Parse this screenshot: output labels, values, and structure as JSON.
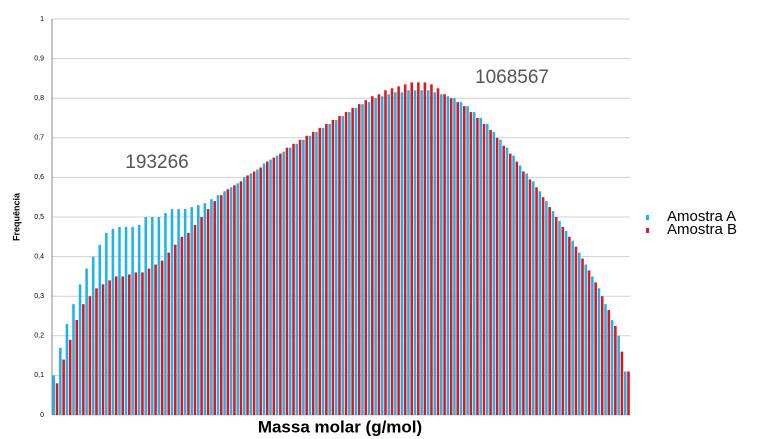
{
  "chart_data": {
    "type": "bar",
    "x_label": "Massa molar (g/mol)",
    "y_label": "Frequência",
    "annotations": [
      "193266",
      "1068567"
    ],
    "categories": [
      null,
      null,
      null,
      null,
      null,
      null,
      null,
      null,
      null,
      null,
      null,
      null,
      null,
      null,
      null,
      null,
      null,
      null,
      null,
      null,
      null,
      null,
      null,
      null,
      null,
      null,
      null,
      null,
      null,
      null,
      null,
      null,
      null,
      null,
      null,
      null,
      null,
      null,
      null,
      null,
      null,
      null,
      null,
      null,
      null,
      null,
      null,
      null,
      null,
      null,
      null,
      null,
      null,
      null,
      null,
      null,
      null,
      null,
      null,
      null,
      null,
      null,
      null,
      null,
      null,
      null,
      null,
      null,
      null,
      null,
      null,
      null,
      null,
      null,
      null,
      null,
      null,
      null,
      null,
      null,
      null,
      null,
      null,
      null,
      null,
      null,
      null,
      null
    ],
    "series": [
      {
        "name": "Amostra A",
        "color": "#1fb4e8",
        "values": [
          0.1,
          0.17,
          0.23,
          0.28,
          0.33,
          0.37,
          0.4,
          0.43,
          0.46,
          0.47,
          0.475,
          0.475,
          0.475,
          0.48,
          0.5,
          0.5,
          0.5,
          0.51,
          0.52,
          0.52,
          0.52,
          0.525,
          0.53,
          0.535,
          0.545,
          0.555,
          0.565,
          0.575,
          0.585,
          0.6,
          0.61,
          0.62,
          0.635,
          0.645,
          0.655,
          0.665,
          0.675,
          0.685,
          0.695,
          0.705,
          0.715,
          0.725,
          0.735,
          0.745,
          0.755,
          0.765,
          0.775,
          0.785,
          0.79,
          0.8,
          0.805,
          0.81,
          0.815,
          0.815,
          0.82,
          0.82,
          0.82,
          0.82,
          0.815,
          0.81,
          0.805,
          0.8,
          0.79,
          0.78,
          0.765,
          0.75,
          0.735,
          0.715,
          0.695,
          0.675,
          0.655,
          0.63,
          0.61,
          0.59,
          0.565,
          0.54,
          0.515,
          0.49,
          0.465,
          0.44,
          0.41,
          0.38,
          0.35,
          0.32,
          0.28,
          0.24,
          0.2,
          0.11
        ]
      },
      {
        "name": "Amostra B",
        "color": "#e3151d",
        "values": [
          0.08,
          0.14,
          0.19,
          0.24,
          0.28,
          0.3,
          0.32,
          0.33,
          0.34,
          0.35,
          0.35,
          0.355,
          0.36,
          0.36,
          0.37,
          0.38,
          0.39,
          0.41,
          0.43,
          0.45,
          0.46,
          0.48,
          0.5,
          0.52,
          0.54,
          0.555,
          0.57,
          0.58,
          0.59,
          0.605,
          0.615,
          0.625,
          0.64,
          0.65,
          0.66,
          0.675,
          0.685,
          0.695,
          0.705,
          0.715,
          0.725,
          0.735,
          0.745,
          0.755,
          0.765,
          0.775,
          0.785,
          0.795,
          0.805,
          0.81,
          0.82,
          0.825,
          0.83,
          0.835,
          0.84,
          0.84,
          0.84,
          0.835,
          0.825,
          0.81,
          0.8,
          0.79,
          0.78,
          0.765,
          0.75,
          0.735,
          0.72,
          0.7,
          0.68,
          0.66,
          0.64,
          0.615,
          0.595,
          0.575,
          0.55,
          0.525,
          0.5,
          0.475,
          0.45,
          0.425,
          0.395,
          0.365,
          0.335,
          0.3,
          0.265,
          0.225,
          0.16,
          0.11
        ]
      }
    ],
    "ylim": [
      0,
      1
    ],
    "yticks": [
      0,
      {
        "value": 0.1,
        "label": "0,1"
      },
      {
        "value": 0.2,
        "label": "0,2"
      },
      {
        "value": 0.3,
        "label": "0,3"
      },
      {
        "value": 0.4,
        "label": "0,4"
      },
      {
        "value": 0.5,
        "label": "0,5"
      },
      {
        "value": 0.6,
        "label": "0,6"
      },
      {
        "value": 0.7,
        "label": "0,7"
      },
      {
        "value": 0.8,
        "label": "0,8"
      },
      {
        "value": 0.9,
        "label": "0,9"
      },
      1
    ],
    "grid": true
  }
}
